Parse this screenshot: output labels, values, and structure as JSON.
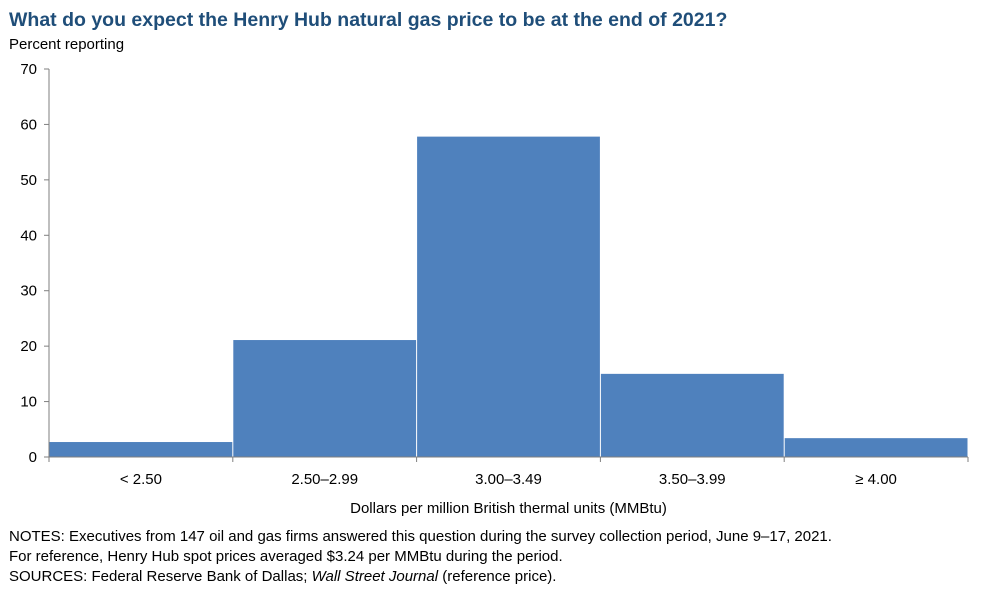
{
  "header": {
    "title": "What do you expect the Henry Hub natural gas price to be at the end of 2021?",
    "subtitle": "Percent reporting"
  },
  "footer": {
    "notes_line1": "NOTES: Executives from 147 oil and gas firms answered this question during the survey collection period, June 9–17, 2021.",
    "notes_line2": "For reference, Henry Hub spot prices averaged $3.24 per MMBtu during the period.",
    "sources_prefix": "SOURCES: Federal Reserve Bank of Dallas; ",
    "sources_italic": "Wall Street Journal",
    "sources_suffix": " (reference price)."
  },
  "colors": {
    "bar": "#4f81bd",
    "axis": "#7f7f7f",
    "title": "#1f4e79"
  },
  "chart_data": {
    "type": "bar",
    "title": "What do you expect the Henry Hub natural gas price to be at the end of 2021?",
    "ylabel": "Percent reporting",
    "xlabel": "Dollars per million British thermal units (MMBtu)",
    "categories": [
      "< 2.50",
      "2.50–2.99",
      "3.00–3.49",
      "3.50–3.99",
      "≥ 4.00"
    ],
    "values": [
      2.7,
      21.1,
      57.8,
      15.0,
      3.4
    ],
    "ylim": [
      0,
      70
    ],
    "yticks": [
      0,
      10,
      20,
      30,
      40,
      50,
      60,
      70
    ],
    "grid": false,
    "legend": "none"
  }
}
